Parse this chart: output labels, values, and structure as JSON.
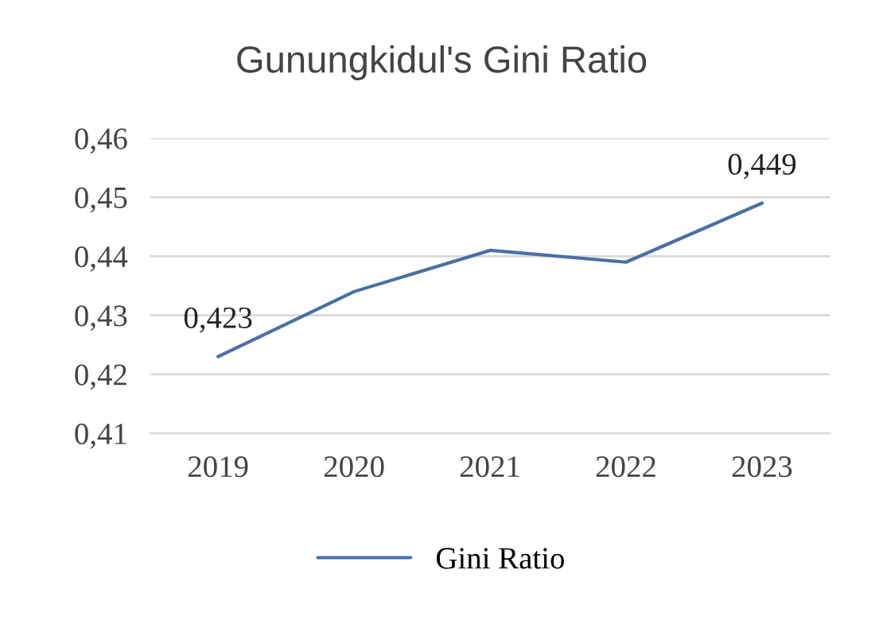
{
  "chart_data": {
    "type": "line",
    "title": "Gunungkidul's Gini Ratio",
    "categories": [
      "2019",
      "2020",
      "2021",
      "2022",
      "2023"
    ],
    "series": [
      {
        "name": "Gini Ratio",
        "color": "#4a6fa5",
        "values": [
          0.423,
          0.434,
          0.441,
          0.439,
          0.449
        ],
        "value_labels": [
          "0,423",
          null,
          null,
          null,
          "0,449"
        ]
      }
    ],
    "ylim": [
      0.41,
      0.46
    ],
    "yticks": [
      {
        "value": 0.41,
        "label": "0,41"
      },
      {
        "value": 0.42,
        "label": "0,42"
      },
      {
        "value": 0.43,
        "label": "0,43"
      },
      {
        "value": 0.44,
        "label": "0,44"
      },
      {
        "value": 0.45,
        "label": "0,45"
      },
      {
        "value": 0.46,
        "label": "0,46"
      }
    ],
    "grid": "y",
    "legend": "bottom",
    "marker": "none",
    "line_style": "solid"
  }
}
